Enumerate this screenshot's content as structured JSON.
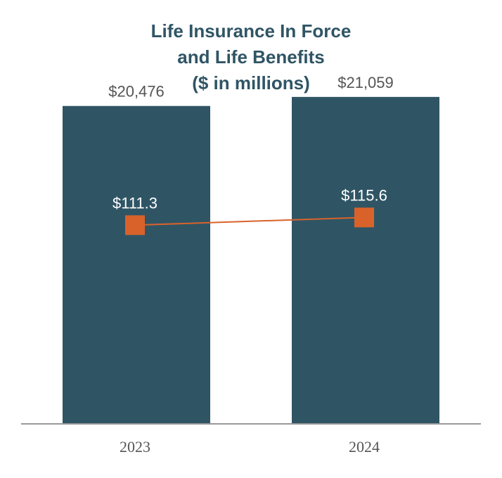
{
  "chart_data": {
    "type": "bar",
    "title": [
      "Life Insurance In Force",
      "and Life Benefits",
      "($ in millions)"
    ],
    "categories": [
      "2023",
      "2024"
    ],
    "series": [
      {
        "name": "Life Insurance In Force",
        "kind": "bar",
        "values": [
          20476,
          21059
        ],
        "labels": [
          "$20,476",
          "$21,059"
        ],
        "color": "#2f5565"
      },
      {
        "name": "Life Benefits",
        "kind": "line",
        "values": [
          111.3,
          115.6
        ],
        "labels": [
          "$111.3",
          "$115.6"
        ],
        "color": "#d9622b"
      }
    ],
    "bar_ylim": [
      0,
      23000
    ],
    "line_ylim": [
      0,
      200
    ],
    "xlabel": "",
    "ylabel": "",
    "grid": false,
    "axis_color": "#999999"
  }
}
